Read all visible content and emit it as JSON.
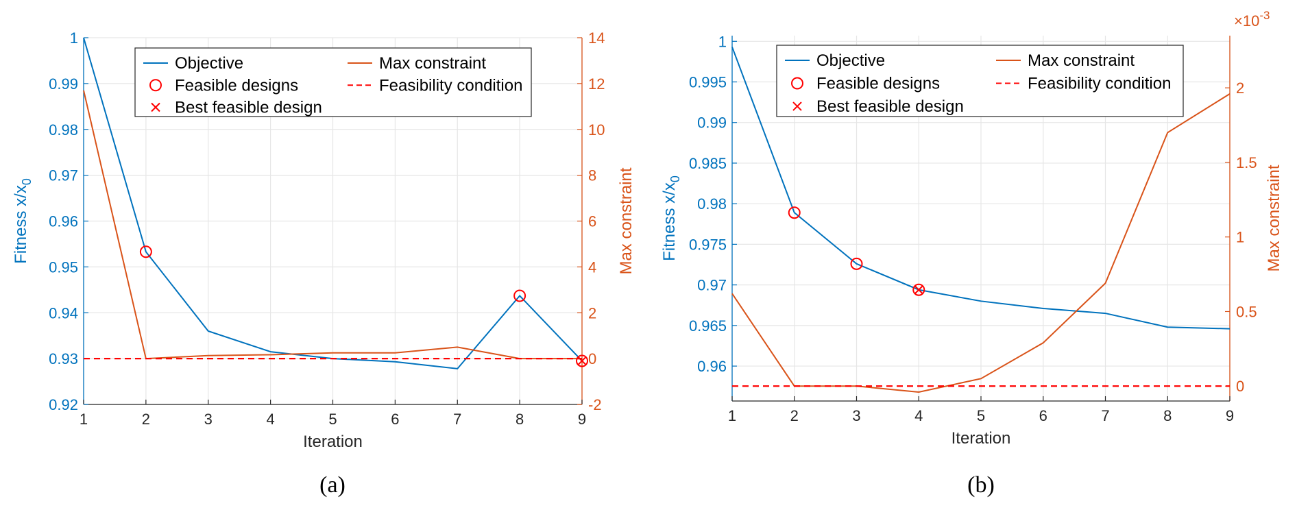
{
  "chart_data": [
    {
      "type": "line",
      "panel_label": "(a)",
      "xlabel": "Iteration",
      "ylabel_left": "Fitness x/x",
      "ylabel_left_sub": "0",
      "ylabel_right": "Max constraint",
      "x": [
        1,
        2,
        3,
        4,
        5,
        6,
        7,
        8,
        9
      ],
      "xlim": [
        1,
        9
      ],
      "xticks": [
        "1",
        "2",
        "3",
        "4",
        "5",
        "6",
        "7",
        "8",
        "9"
      ],
      "ylim_left": [
        0.92,
        1
      ],
      "yticks_left": [
        "0.92",
        "0.93",
        "0.94",
        "0.95",
        "0.96",
        "0.97",
        "0.98",
        "0.99",
        "1"
      ],
      "ylim_right": [
        -2,
        14
      ],
      "yticks_right": [
        "-2",
        "0",
        "2",
        "4",
        "6",
        "8",
        "10",
        "12",
        "14"
      ],
      "right_exponent": "",
      "grid": true,
      "legend_position": "top",
      "series": [
        {
          "name": "Objective",
          "axis": "left",
          "color": "#0072BD",
          "values": [
            1.0,
            0.9533,
            0.936,
            0.9315,
            0.93,
            0.9293,
            0.9278,
            0.9437,
            0.9295
          ]
        },
        {
          "name": "Max constraint",
          "axis": "right",
          "color": "#D95319",
          "values": [
            11.7,
            0.0,
            0.13,
            0.17,
            0.25,
            0.25,
            0.5,
            0.0,
            0.0
          ]
        },
        {
          "name": "Feasibility condition",
          "axis": "right",
          "color": "#FF0000",
          "style": "dashed",
          "values": [
            0,
            0,
            0,
            0,
            0,
            0,
            0,
            0,
            0
          ]
        }
      ],
      "feasible_designs": {
        "name": "Feasible designs",
        "x": [
          2,
          8,
          9
        ],
        "y": [
          0.9533,
          0.9437,
          0.9295
        ]
      },
      "best_feasible_design": {
        "name": "Best feasible design",
        "x": 9,
        "y": 0.9295
      },
      "legend": [
        "Objective",
        "Max constraint",
        "Feasible designs",
        "Feasibility condition",
        "Best feasible design"
      ]
    },
    {
      "type": "line",
      "panel_label": "(b)",
      "xlabel": "Iteration",
      "ylabel_left": "Fitness x/x",
      "ylabel_left_sub": "0",
      "ylabel_right": "Max constraint",
      "x": [
        1,
        2,
        3,
        4,
        5,
        6,
        7,
        8,
        9
      ],
      "xlim": [
        1,
        9
      ],
      "xticks": [
        "1",
        "2",
        "3",
        "4",
        "5",
        "6",
        "7",
        "8",
        "9"
      ],
      "ylim_left": [
        0.9557,
        1.0007
      ],
      "yticks_left": [
        "0.96",
        "0.965",
        "0.97",
        "0.975",
        "0.98",
        "0.985",
        "0.99",
        "0.995",
        "1"
      ],
      "ylim_right": [
        -0.1,
        2.35
      ],
      "yticks_right": [
        "0",
        "0.5",
        "1",
        "1.5",
        "2"
      ],
      "right_exponent": "-3",
      "right_exponent_base": "×10",
      "grid": true,
      "legend_position": "top",
      "series": [
        {
          "name": "Objective",
          "axis": "left",
          "color": "#0072BD",
          "values": [
            0.9993,
            0.9789,
            0.9726,
            0.9694,
            0.968,
            0.9671,
            0.9665,
            0.9648,
            0.9646
          ]
        },
        {
          "name": "Max constraint",
          "axis": "right",
          "color": "#D95319",
          "values": [
            0.62,
            0.0,
            0.0,
            -0.04,
            0.05,
            0.29,
            0.69,
            1.7,
            1.96
          ]
        },
        {
          "name": "Feasibility condition",
          "axis": "right",
          "color": "#FF0000",
          "style": "dashed",
          "values": [
            0,
            0,
            0,
            0,
            0,
            0,
            0,
            0,
            0
          ]
        }
      ],
      "feasible_designs": {
        "name": "Feasible designs",
        "x": [
          2,
          3,
          4
        ],
        "y": [
          0.9789,
          0.9726,
          0.9694
        ]
      },
      "best_feasible_design": {
        "name": "Best feasible design",
        "x": 4,
        "y": 0.9694
      },
      "legend": [
        "Objective",
        "Max constraint",
        "Feasible designs",
        "Feasibility condition",
        "Best feasible design"
      ]
    }
  ]
}
